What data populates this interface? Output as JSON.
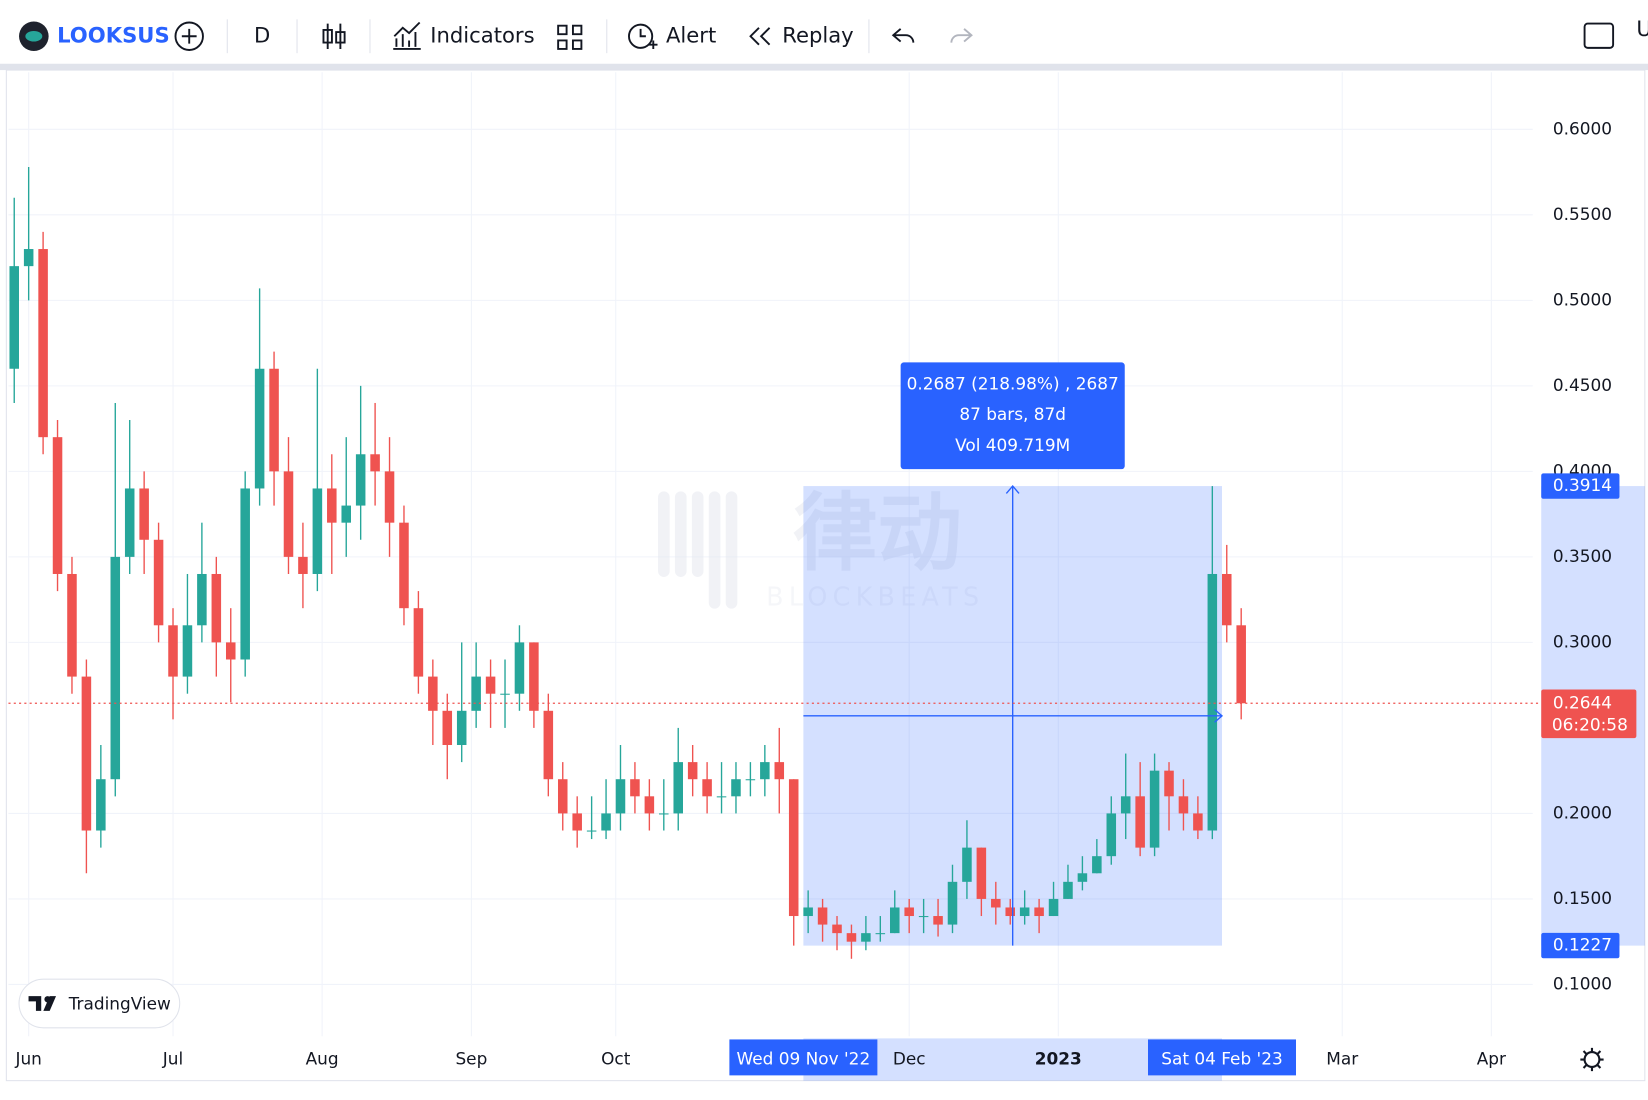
{
  "toolbar": {
    "symbol": "LOOKSUS",
    "interval": "D",
    "indicators": "Indicators",
    "alert": "Alert",
    "replay": "Replay",
    "cut": "U"
  },
  "watermark": {
    "text": "律动",
    "subtext": "BLOCKBEATS"
  },
  "logo": "TradingView",
  "chart_data": {
    "type": "candlestick",
    "categories": [
      null,
      null,
      null,
      null,
      null,
      null,
      null,
      null,
      null,
      null,
      null,
      null,
      null,
      null,
      null,
      null,
      null,
      null,
      null,
      null,
      null,
      null,
      null,
      null,
      null,
      null,
      null,
      null,
      null,
      null,
      null,
      null,
      null,
      null,
      null,
      null,
      null,
      null,
      null,
      null,
      null,
      null,
      null,
      null,
      null,
      null,
      null,
      null,
      null,
      null,
      null,
      null,
      null,
      null,
      null,
      null,
      null,
      null,
      null,
      null,
      null,
      null,
      null,
      null,
      null,
      null,
      null,
      null,
      null,
      null,
      null,
      null,
      null,
      null,
      null,
      null,
      null,
      null,
      null,
      null,
      null,
      null,
      null,
      null,
      null,
      null
    ],
    "open": [
      0.46,
      0.52,
      0.53,
      0.42,
      0.34,
      0.28,
      0.19,
      0.22,
      0.35,
      0.39,
      0.36,
      0.31,
      0.28,
      0.31,
      0.34,
      0.3,
      0.29,
      0.39,
      0.46,
      0.4,
      0.35,
      0.34,
      0.39,
      0.37,
      0.38,
      0.41,
      0.4,
      0.37,
      0.32,
      0.28,
      0.26,
      0.24,
      0.26,
      0.28,
      0.27,
      0.27,
      0.3,
      0.26,
      0.22,
      0.2,
      0.19,
      0.19,
      0.2,
      0.22,
      0.21,
      0.2,
      0.2,
      0.23,
      0.22,
      0.21,
      0.21,
      0.22,
      0.22,
      0.23,
      0.22,
      0.14,
      0.145,
      0.135,
      0.13,
      0.125,
      0.13,
      0.13,
      0.145,
      0.14,
      0.14,
      0.135,
      0.16,
      0.18,
      0.15,
      0.145,
      0.14,
      0.145,
      0.14,
      0.15,
      0.16,
      0.165,
      0.175,
      0.2,
      0.21,
      0.18,
      0.225,
      0.21,
      0.2,
      0.19,
      0.34,
      0.31
    ],
    "high": [
      0.56,
      0.578,
      0.54,
      0.43,
      0.35,
      0.29,
      0.24,
      0.44,
      0.43,
      0.4,
      0.37,
      0.32,
      0.34,
      0.37,
      0.35,
      0.32,
      0.4,
      0.507,
      0.47,
      0.42,
      0.37,
      0.46,
      0.41,
      0.42,
      0.45,
      0.44,
      0.42,
      0.38,
      0.33,
      0.29,
      0.27,
      0.3,
      0.3,
      0.29,
      0.29,
      0.31,
      0.3,
      0.27,
      0.23,
      0.21,
      0.21,
      0.22,
      0.24,
      0.23,
      0.22,
      0.22,
      0.25,
      0.24,
      0.23,
      0.23,
      0.23,
      0.23,
      0.24,
      0.25,
      0.22,
      0.155,
      0.15,
      0.14,
      0.135,
      0.14,
      0.14,
      0.155,
      0.15,
      0.15,
      0.15,
      0.17,
      0.196,
      0.18,
      0.16,
      0.15,
      0.155,
      0.15,
      0.16,
      0.17,
      0.175,
      0.185,
      0.21,
      0.235,
      0.23,
      0.235,
      0.23,
      0.22,
      0.21,
      0.3914,
      0.357,
      0.32
    ],
    "low": [
      0.44,
      0.5,
      0.41,
      0.33,
      0.27,
      0.165,
      0.18,
      0.21,
      0.34,
      0.34,
      0.3,
      0.255,
      0.27,
      0.3,
      0.28,
      0.265,
      0.28,
      0.38,
      0.38,
      0.34,
      0.32,
      0.33,
      0.34,
      0.35,
      0.36,
      0.38,
      0.35,
      0.31,
      0.27,
      0.24,
      0.22,
      0.23,
      0.25,
      0.25,
      0.25,
      0.26,
      0.25,
      0.21,
      0.19,
      0.18,
      0.185,
      0.185,
      0.19,
      0.2,
      0.19,
      0.19,
      0.19,
      0.21,
      0.2,
      0.2,
      0.2,
      0.21,
      0.21,
      0.2,
      0.1227,
      0.13,
      0.125,
      0.12,
      0.115,
      0.12,
      0.125,
      0.13,
      0.13,
      0.13,
      0.128,
      0.13,
      0.15,
      0.14,
      0.135,
      0.135,
      0.135,
      0.13,
      0.14,
      0.15,
      0.155,
      0.165,
      0.17,
      0.185,
      0.175,
      0.175,
      0.19,
      0.19,
      0.185,
      0.185,
      0.3,
      0.255
    ],
    "close": [
      0.52,
      0.53,
      0.42,
      0.34,
      0.28,
      0.19,
      0.22,
      0.35,
      0.39,
      0.36,
      0.31,
      0.28,
      0.31,
      0.34,
      0.3,
      0.29,
      0.39,
      0.46,
      0.4,
      0.35,
      0.34,
      0.39,
      0.37,
      0.38,
      0.41,
      0.4,
      0.37,
      0.32,
      0.28,
      0.26,
      0.24,
      0.26,
      0.28,
      0.27,
      0.27,
      0.3,
      0.26,
      0.22,
      0.2,
      0.19,
      0.19,
      0.2,
      0.22,
      0.21,
      0.2,
      0.2,
      0.23,
      0.22,
      0.21,
      0.21,
      0.22,
      0.22,
      0.23,
      0.22,
      0.14,
      0.145,
      0.135,
      0.13,
      0.125,
      0.13,
      0.13,
      0.145,
      0.14,
      0.14,
      0.135,
      0.16,
      0.18,
      0.15,
      0.145,
      0.14,
      0.145,
      0.14,
      0.15,
      0.16,
      0.165,
      0.175,
      0.2,
      0.21,
      0.18,
      0.225,
      0.21,
      0.2,
      0.19,
      0.34,
      0.31,
      0.2644
    ],
    "colors": {
      "up": "#26a69a",
      "down": "#ef5350",
      "measure": "#2962ff"
    },
    "xlim": [
      -0.4,
      105.2
    ],
    "xticks": [
      {
        "value": 1,
        "label": "Jun"
      },
      {
        "value": 11,
        "label": "Jul"
      },
      {
        "value": 21.33,
        "label": "Aug"
      },
      {
        "value": 31.67,
        "label": "Sep"
      },
      {
        "value": 41.67,
        "label": "Oct"
      },
      {
        "value": 62,
        "label": "Dec"
      },
      {
        "value": 72.33,
        "label": "2023"
      },
      {
        "value": 92,
        "label": "Mar"
      },
      {
        "value": 102.33,
        "label": "Apr"
      }
    ],
    "ylim": [
      0.0697,
      0.6334
    ],
    "yticks": [
      {
        "value": 0.1,
        "label": "0.1000"
      },
      {
        "value": 0.15,
        "label": "0.1500"
      },
      {
        "value": 0.2,
        "label": "0.2000"
      },
      {
        "value": 0.3,
        "label": "0.3000"
      },
      {
        "value": 0.35,
        "label": "0.3500"
      },
      {
        "value": 0.4,
        "label": "0.4000"
      },
      {
        "value": 0.45,
        "label": "0.4500"
      },
      {
        "value": 0.5,
        "label": "0.5000"
      },
      {
        "value": 0.55,
        "label": "0.5500"
      },
      {
        "value": 0.6,
        "label": "0.6000"
      }
    ],
    "grid": true,
    "last_price": {
      "value": 0.2644,
      "countdown": "06:20:58"
    },
    "measure": {
      "x": [
        54.67,
        83.67
      ],
      "x_labels": [
        "Wed 09 Nov '22",
        "Sat 04 Feb '23"
      ],
      "y": [
        0.1227,
        0.3914
      ],
      "lines": [
        "0.2687 (218.98%) , 2687",
        "87 bars, 87d",
        "Vol 409.719M"
      ]
    }
  }
}
